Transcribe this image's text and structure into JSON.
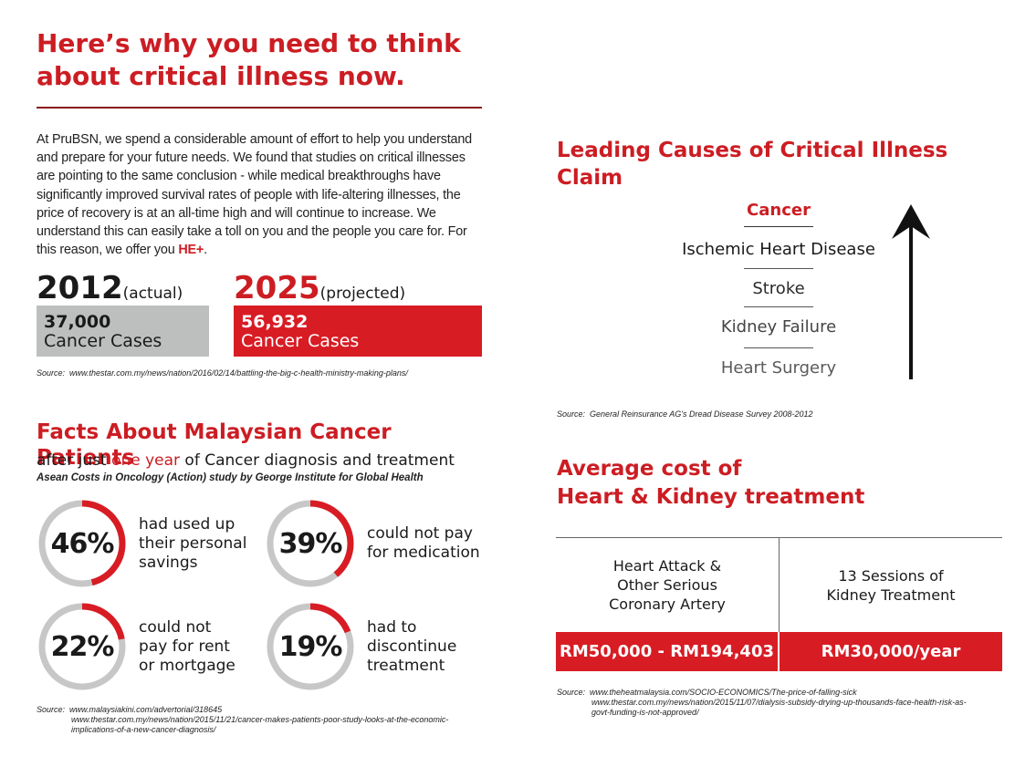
{
  "title": "Here’s why you need to think about critical illness now.",
  "intro": {
    "text": "At PruBSN, we spend a considerable amount of effort to help you understand and prepare for your future needs. We found that studies on critical illnesses are pointing to the same conclusion - while medical breakthroughs have significantly improved survival rates of people with life-altering illnesses, the price of recovery is at an all-time high and will continue to increase. We understand this can easily take a toll on you and the people you care for. For this reason, we offer you ",
    "product": "HE+",
    "end": "."
  },
  "cases": [
    {
      "year": "2012",
      "note": "(actual)",
      "count": "37,000",
      "label": "Cancer Cases"
    },
    {
      "year": "2025",
      "note": "(projected)",
      "count": "56,932",
      "label": "Cancer Cases"
    }
  ],
  "sources": {
    "cases": {
      "label": "Source:",
      "lines": [
        "www.thestar.com.my/news/nation/2016/02/14/battling-the-big-c-health-ministry-making-plans/"
      ]
    },
    "facts": {
      "label": "Source:",
      "lines": [
        "www.malaysiakini.com/advertorial/318645",
        "www.thestar.com.my/news/nation/2015/11/21/cancer-makes-patients-poor-study-looks-at-the-economic-",
        "implications-of-a-new-cancer-diagnosis/"
      ]
    },
    "causes": {
      "label": "Source:",
      "lines": [
        "General Reinsurance AG's Dread Disease Survey 2008-2012"
      ]
    },
    "cost": {
      "label": "Source:",
      "lines": [
        "www.theheatmalaysia.com/SOCIO-ECONOMICS/The-price-of-falling-sick",
        "www.thestar.com.my/news/nation/2015/11/07/dialysis-subsidy-drying-up-thousands-face-health-risk-as-",
        "govt-funding-is-not-approved/"
      ]
    }
  },
  "facts": {
    "title": "Facts About Malaysian Cancer Patients",
    "sub_before": "after just ",
    "sub_highlight": "one year",
    "sub_after": " of Cancer diagnosis and treatment",
    "study": "Asean Costs in Oncology (Action) study by George Institute for Global Health",
    "stats": [
      {
        "pct": "46%",
        "value": 0.46,
        "label": "had used up\ntheir personal\nsavings"
      },
      {
        "pct": "39%",
        "value": 0.39,
        "label": "could not pay\nfor medication"
      },
      {
        "pct": "22%",
        "value": 0.22,
        "label": "could not\npay for rent\nor mortgage"
      },
      {
        "pct": "19%",
        "value": 0.19,
        "label": "had to\ndiscontinue\ntreatment"
      }
    ]
  },
  "causes": {
    "title": "Leading Causes of Critical Illness Claim",
    "items": [
      "Cancer",
      "Ischemic Heart Disease",
      "Stroke",
      "Kidney Failure",
      "Heart Surgery"
    ]
  },
  "cost": {
    "title_line1": "Average cost of",
    "title_line2": "Heart & Kidney treatment",
    "columns": [
      {
        "label": "Heart Attack &\nOther Serious\nCoronary Artery",
        "value": "RM50,000 - RM194,403"
      },
      {
        "label": "13 Sessions of\nKidney Treatment",
        "value": "RM30,000/year"
      }
    ]
  },
  "colors": {
    "accent": "#cc1d23",
    "box_red": "#d81c24",
    "box_grey": "#bdbfbf",
    "ring_grey": "#c7c7c7"
  }
}
